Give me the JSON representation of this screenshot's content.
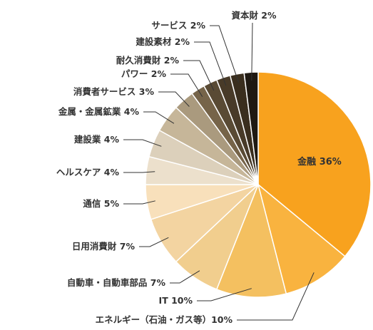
{
  "chart_data": {
    "type": "pie",
    "title": "",
    "start_angle_deg": 0,
    "direction": "clockwise",
    "slices": [
      {
        "label": "金融 36%",
        "value": 36,
        "color": "#f8a21e"
      },
      {
        "label": "エネルギー（石油・ガス等）10%",
        "value": 10,
        "color": "#f9b33f"
      },
      {
        "label": "IT 10%",
        "value": 10,
        "color": "#f4c060"
      },
      {
        "label": "自動車・自動車部品 7%",
        "value": 7,
        "color": "#f1ce8e"
      },
      {
        "label": "日用消費財 7%",
        "value": 7,
        "color": "#f3d4a1"
      },
      {
        "label": "通信 5%",
        "value": 5,
        "color": "#f8e0bb"
      },
      {
        "label": "ヘルスケア 4%",
        "value": 4,
        "color": "#ece0cc"
      },
      {
        "label": "建設業 4%",
        "value": 4,
        "color": "#dcd0bb"
      },
      {
        "label": "金属・金属鉱業 4%",
        "value": 4,
        "color": "#c6b699"
      },
      {
        "label": "消費者サービス 3%",
        "value": 3,
        "color": "#aa9a7e"
      },
      {
        "label": "パワー 2%",
        "value": 2,
        "color": "#766449"
      },
      {
        "label": "耐久消費財 2%",
        "value": 2,
        "color": "#594a34"
      },
      {
        "label": "建設素材 2%",
        "value": 2,
        "color": "#483a28"
      },
      {
        "label": "サービス 2%",
        "value": 2,
        "color": "#3a2e1e"
      },
      {
        "label": "資本財 2%",
        "value": 2,
        "color": "#1f1912"
      }
    ]
  }
}
